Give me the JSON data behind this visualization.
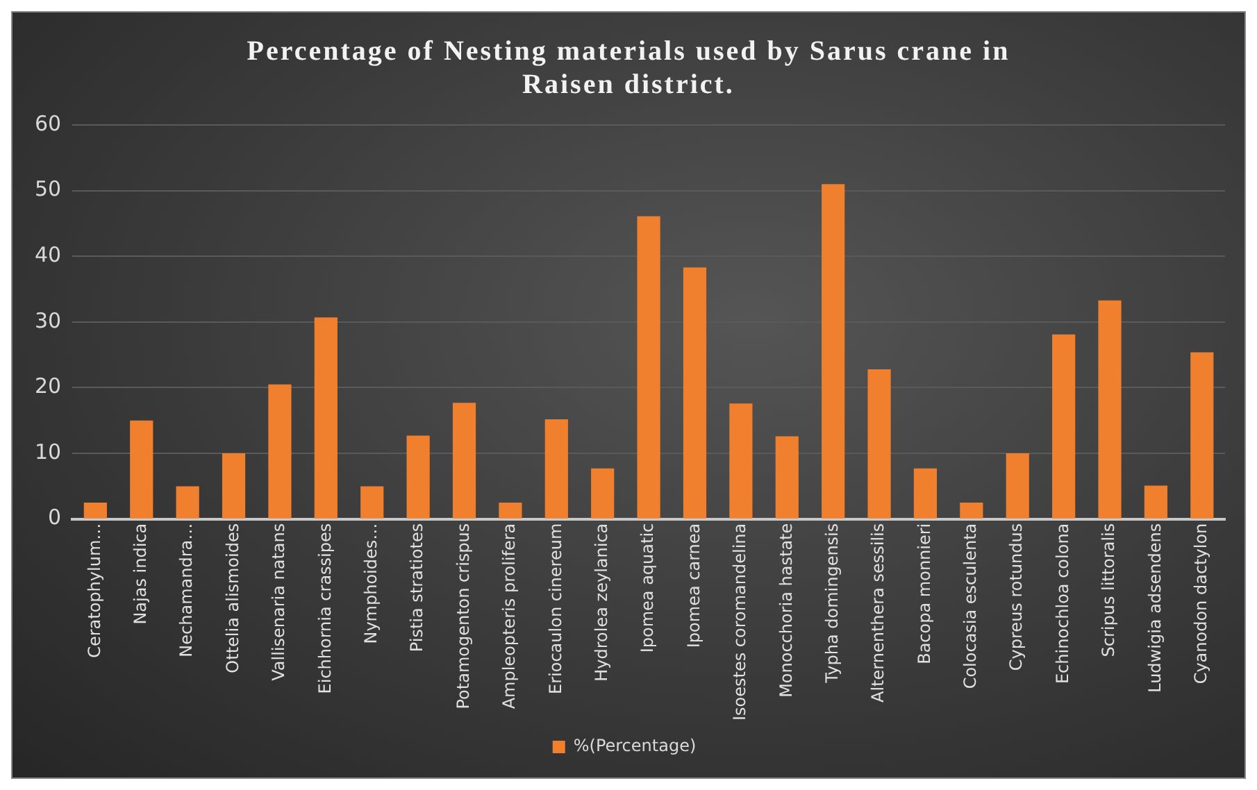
{
  "chart_data": {
    "type": "bar",
    "title": "Percentage of Nesting materials used by Sarus crane in Raisen district.",
    "categories": [
      "Ceratophylum…",
      "Najas indica",
      "Nechamandra…",
      "Ottelia alismoides",
      "Vallisenaria natans",
      "Eichhornia crassipes",
      "Nymphoides…",
      "Pistia stratiotes",
      "Potamogenton crispus",
      "Ampleopteris prolifera",
      "Eriocaulon cinereum",
      "Hydrolea zeylanica",
      "Ipomea aquatic",
      "Ipomea carnea",
      "Isoestes coromandelina",
      "Monocchoria hastate",
      "Typha domingensis",
      "Alternenthera sessilis",
      "Bacopa monnieri",
      "Colocasia esculenta",
      "Cypreus rotundus",
      "Echinochloa colona",
      "Scripus littoralis",
      "Ludwigia adsendens",
      "Cyanodon dactylon"
    ],
    "series": [
      {
        "name": "%(Percentage)",
        "color": "#f07f2e",
        "values": [
          2.5,
          15,
          5,
          10,
          20.5,
          30.7,
          5,
          12.7,
          17.7,
          2.5,
          15.2,
          7.7,
          46.1,
          38.3,
          17.6,
          12.6,
          51,
          22.8,
          7.7,
          2.5,
          10,
          28.1,
          33.3,
          5.1,
          25.4
        ]
      }
    ],
    "ylim": [
      0,
      60
    ],
    "yticks": [
      0,
      10,
      20,
      30,
      40,
      50,
      60
    ],
    "grid": "y",
    "legend": "bottom"
  }
}
